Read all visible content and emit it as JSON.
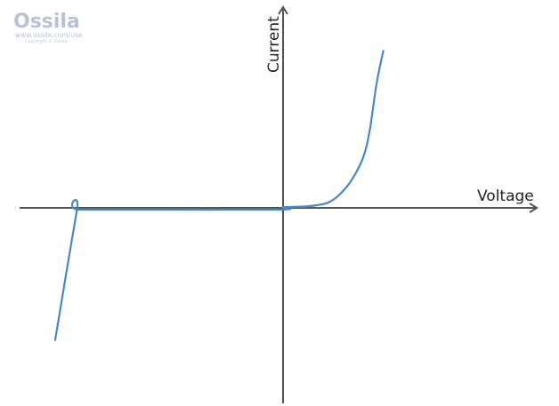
{
  "watermark": {
    "brand": "Ossila",
    "url": "www.ossila.com/use",
    "copyright": "Copyright © Ossila",
    "color": "#b9c1d6"
  },
  "chart_data": {
    "type": "line",
    "title": "",
    "xlabel": "Voltage",
    "ylabel": "Current",
    "ticks": "none",
    "grid": false,
    "line_color": "#4a86c8",
    "axis_color": "#555555",
    "series": [
      {
        "points": [
          [
            -1.0,
            -0.48
          ],
          [
            -0.905,
            -0.01
          ],
          [
            -0.895,
            -0.006
          ],
          [
            -0.5,
            -0.006
          ],
          [
            -0.01,
            -0.006
          ],
          [
            0.0,
            0.0
          ],
          [
            0.01,
            0.003
          ],
          [
            0.1,
            0.005
          ],
          [
            0.15,
            0.01
          ],
          [
            0.2,
            0.02
          ],
          [
            0.25,
            0.05
          ],
          [
            0.3,
            0.1
          ],
          [
            0.35,
            0.18
          ],
          [
            0.38,
            0.28
          ],
          [
            0.41,
            0.45
          ],
          [
            0.44,
            0.57
          ]
        ]
      }
    ]
  }
}
